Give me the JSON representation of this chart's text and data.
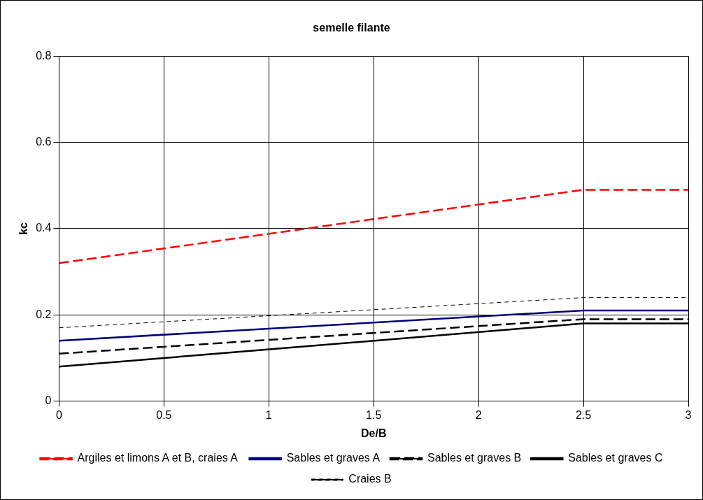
{
  "chart_data": {
    "type": "line",
    "title": "semelle filante",
    "xlabel": "De/B",
    "ylabel": "kc",
    "x": [
      0,
      2.5,
      3
    ],
    "series": [
      {
        "name": "Argiles et limons A et B, craies A",
        "color": "#ff0000",
        "line_style": "dashed",
        "values": [
          0.32,
          0.49,
          0.49
        ]
      },
      {
        "name": "Sables et graves A",
        "color": "#000080",
        "line_style": "solid",
        "values": [
          0.14,
          0.21,
          0.21
        ]
      },
      {
        "name": "Sables et graves B",
        "color": "#000000",
        "line_style": "dashed",
        "values": [
          0.11,
          0.19,
          0.19
        ]
      },
      {
        "name": "Sables et graves C",
        "color": "#000000",
        "line_style": "solid",
        "values": [
          0.08,
          0.18,
          0.18
        ]
      },
      {
        "name": "Craies B",
        "color": "#000000",
        "line_style": "dotted",
        "values": [
          0.17,
          0.24,
          0.24
        ]
      }
    ],
    "xlim": [
      0,
      3
    ],
    "xticks": [
      0,
      0.5,
      1,
      1.5,
      2,
      2.5,
      3
    ],
    "ylim": [
      0,
      0.8
    ],
    "yticks": [
      0,
      0.2,
      0.4,
      0.6,
      0.8
    ],
    "grid": true,
    "legend": "bottom"
  }
}
